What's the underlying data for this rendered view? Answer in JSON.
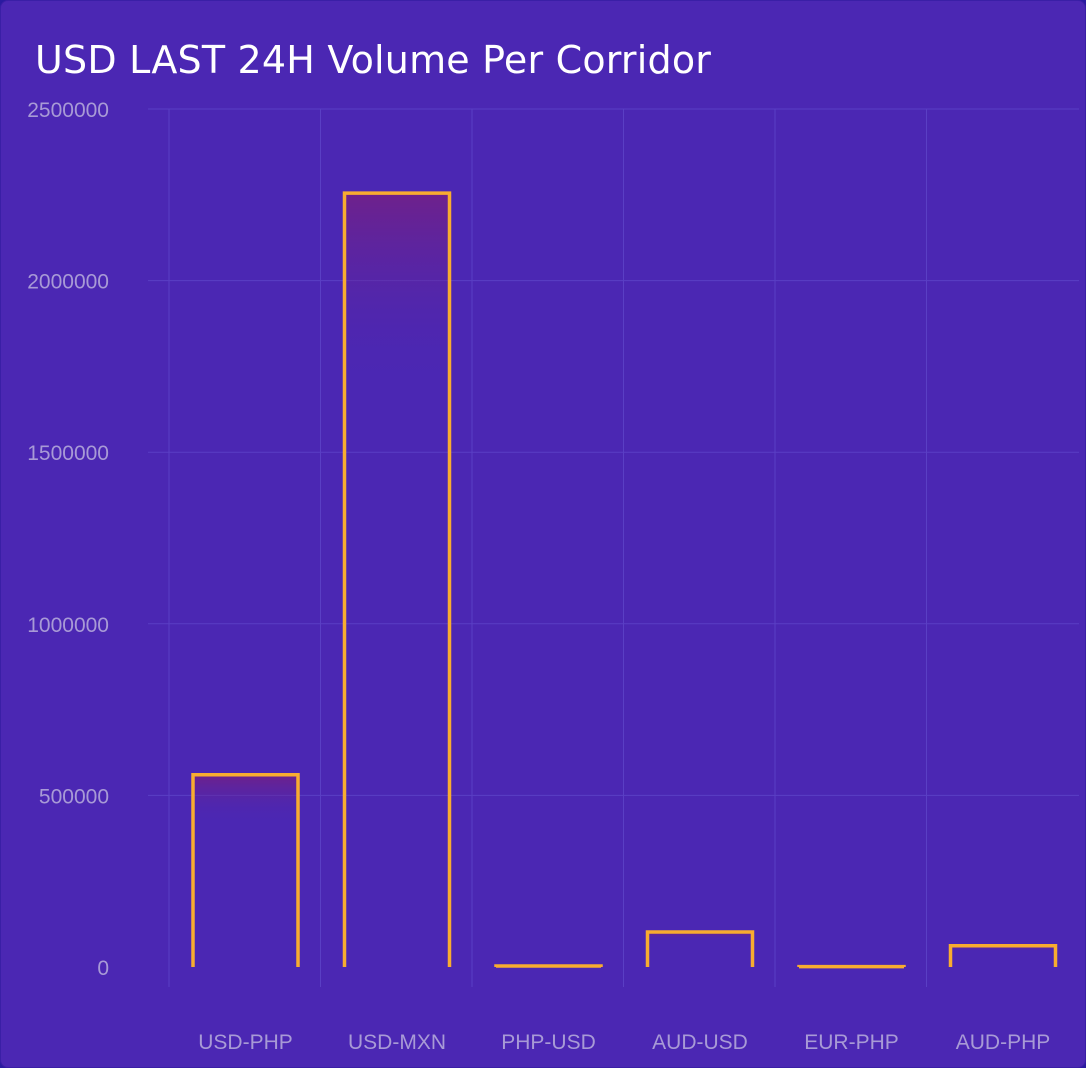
{
  "chart_data": {
    "type": "bar",
    "title": "USD LAST 24H Volume Per Corridor",
    "categories": [
      "USD-PHP",
      "USD-MXN",
      "PHP-USD",
      "AUD-USD",
      "EUR-PHP",
      "AUD-PHP"
    ],
    "values": [
      560000,
      2255000,
      3000,
      102000,
      1000,
      62000
    ],
    "ylim": [
      0,
      2500000
    ],
    "yticks": [
      "0",
      "500000",
      "1000000",
      "1500000",
      "2000000",
      "2500000"
    ],
    "grid": true,
    "xlabel": "",
    "ylabel": ""
  },
  "colors": {
    "background": "#4b27b3",
    "bar_stroke": "#f8ac30",
    "grid": "#5a3fc4",
    "tick_text": "#a89ad6",
    "title_text": "#ffffff"
  }
}
